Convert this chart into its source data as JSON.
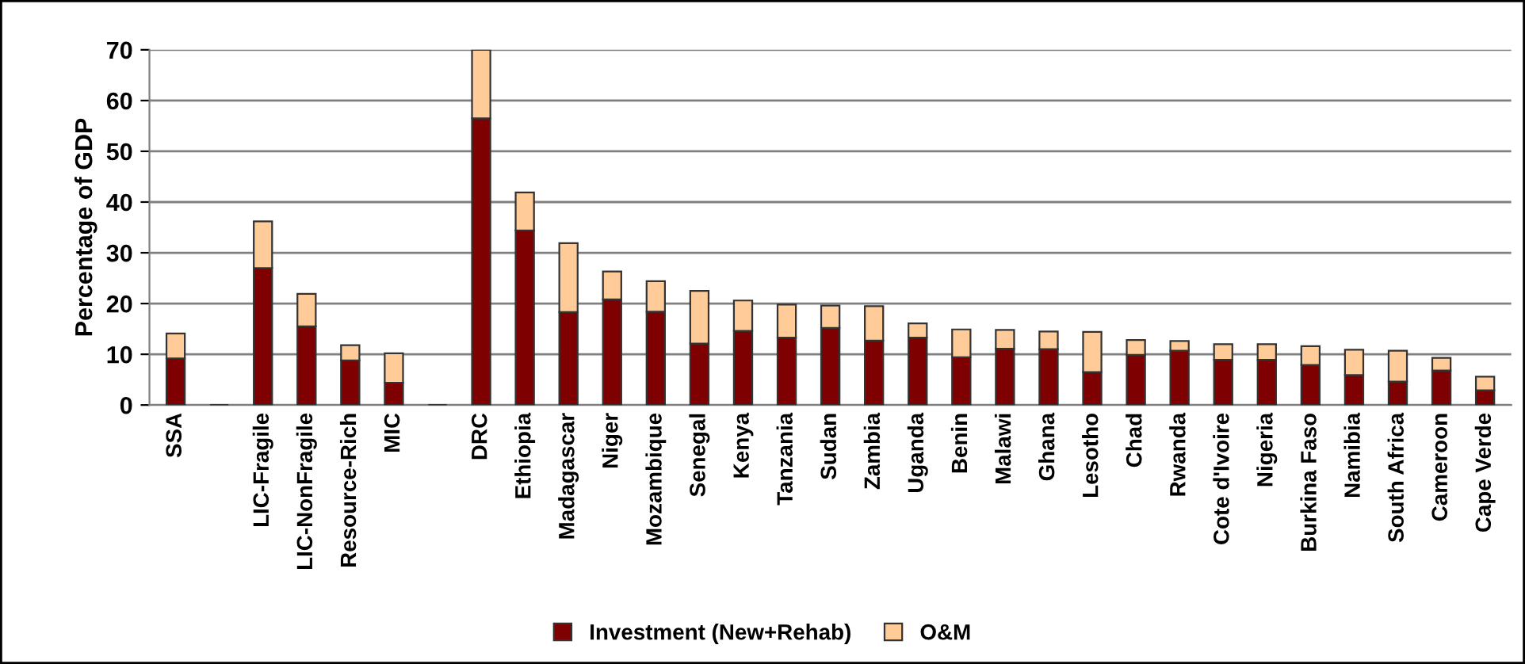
{
  "chart_data": {
    "type": "bar",
    "stacked": true,
    "ylabel": "Percentage of GDP",
    "categories": [
      "SSA",
      null,
      "LIC-Fragile",
      "LIC-NonFragile",
      "Resource-Rich",
      "MIC",
      null,
      "DRC",
      "Ethiopia",
      "Madagascar",
      "Niger",
      "Mozambique",
      "Senegal",
      "Kenya",
      "Tanzania",
      "Sudan",
      "Zambia",
      "Uganda",
      "Benin",
      "Malawi",
      "Ghana",
      "Lesotho",
      "Chad",
      "Rwanda",
      "Cote d'Ivoire",
      "Nigeria",
      "Burkina Faso",
      "Namibia",
      "South Africa",
      "Cameroon",
      "Cape Verde"
    ],
    "series": [
      {
        "name": "Investment (New+Rehab)",
        "color": "#7f0000",
        "values": [
          9.2,
          null,
          27.0,
          15.5,
          8.8,
          4.4,
          null,
          56.5,
          34.4,
          18.3,
          20.8,
          18.4,
          12.1,
          14.6,
          13.3,
          15.2,
          12.7,
          13.3,
          9.4,
          11.1,
          11.0,
          6.5,
          9.9,
          10.7,
          8.9,
          8.9,
          7.9,
          5.9,
          4.6,
          6.8,
          2.9
        ]
      },
      {
        "name": "O&M",
        "color": "#ffcc99",
        "values": [
          4.9,
          null,
          9.2,
          6.4,
          3.0,
          5.8,
          null,
          13.5,
          7.5,
          13.6,
          5.5,
          6.0,
          10.4,
          6.0,
          6.5,
          4.4,
          6.8,
          2.8,
          5.5,
          3.7,
          3.5,
          7.9,
          2.9,
          1.9,
          3.1,
          3.1,
          3.7,
          5.0,
          6.1,
          2.5,
          2.7
        ]
      }
    ],
    "ylim": [
      0,
      70
    ],
    "yticks": [
      0,
      10,
      20,
      30,
      40,
      50,
      60,
      70
    ],
    "grid": "y",
    "legend": "bottom"
  }
}
